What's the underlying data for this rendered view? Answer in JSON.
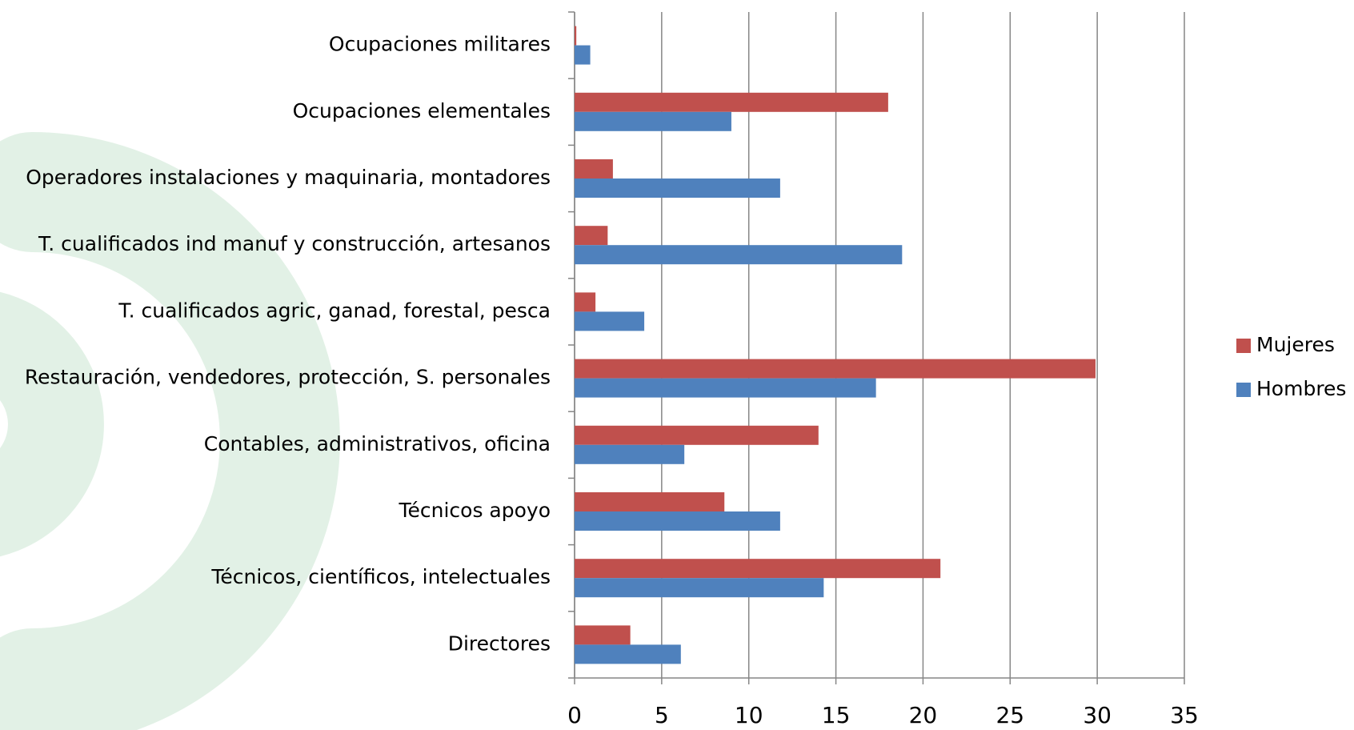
{
  "chart_data": {
    "type": "bar",
    "orientation": "horizontal",
    "categories": [
      "Directores",
      "Técnicos, científicos, intelectuales",
      "Técnicos apoyo",
      "Contables, administrativos, oficina",
      "Restauración, vendedores, protección, S. personales",
      "T. cualificados agric, ganad, forestal, pesca",
      "T. cualificados ind manuf y construcción, artesanos",
      "Operadores instalaciones y maquinaria, montadores",
      "Ocupaciones elementales",
      "Ocupaciones militares"
    ],
    "series": [
      {
        "name": "Mujeres",
        "color": "#c0504d",
        "values": [
          3.2,
          21,
          8.6,
          14,
          29.9,
          1.2,
          1.9,
          2.2,
          18,
          0.1
        ]
      },
      {
        "name": "Hombres",
        "color": "#4f81bd",
        "values": [
          6.1,
          14.3,
          11.8,
          6.3,
          17.3,
          4.0,
          18.8,
          11.8,
          9.0,
          0.9
        ]
      }
    ],
    "xlim": [
      0,
      35
    ],
    "xticks": [
      0,
      5,
      10,
      15,
      20,
      25,
      30,
      35
    ],
    "grid": true,
    "legend": "right"
  }
}
